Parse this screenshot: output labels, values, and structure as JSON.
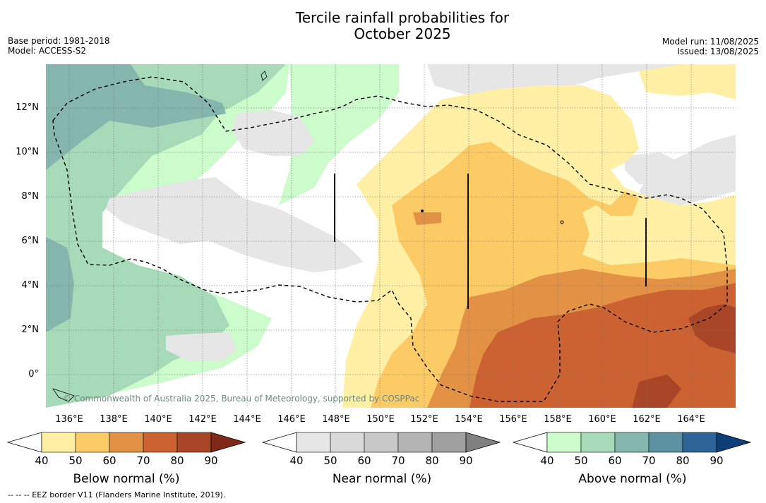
{
  "title_line1": "Tercile rainfall probabilities for",
  "title_line2": "October 2025",
  "base_period": "Base period: 1981-2018",
  "model": "Model: ACCESS-S2",
  "model_run": "Model run: 11/08/2025",
  "issued": "Issued: 13/08/2025",
  "copyright": "© Commonwealth of Australia 2025, Bureau of Meteorology, supported by COSPPac",
  "footer": "--  --  -- EEZ border V11 (Flanders Marine Institute, 2019).",
  "lat_labels": [
    "12°N",
    "10°N",
    "8°N",
    "6°N",
    "4°N",
    "2°N",
    "0°"
  ],
  "lon_labels": [
    "136°E",
    "138°E",
    "140°E",
    "142°E",
    "144°E",
    "146°E",
    "148°E",
    "150°E",
    "152°E",
    "154°E",
    "156°E",
    "158°E",
    "160°E",
    "162°E",
    "164°E"
  ],
  "colorbars": [
    {
      "title": "Below normal (%)",
      "ticks": [
        "40",
        "50",
        "60",
        "70",
        "80",
        "90"
      ],
      "colors": [
        "#fff0a6",
        "#fdcb66",
        "#e29145",
        "#cc6231",
        "#a94628",
        "#7f2a18"
      ]
    },
    {
      "title": "Near normal (%)",
      "ticks": [
        "40",
        "50",
        "60",
        "70",
        "80",
        "90"
      ],
      "colors": [
        "#e6e6e6",
        "#d9d9d9",
        "#c8c8c8",
        "#b4b4b4",
        "#a0a0a0",
        "#808080"
      ]
    },
    {
      "title": "Above normal (%)",
      "ticks": [
        "40",
        "50",
        "60",
        "70",
        "80",
        "90"
      ],
      "colors": [
        "#ccfccc",
        "#a6dab8",
        "#84b6ae",
        "#5d92a2",
        "#2f6499",
        "#0f3d78"
      ]
    }
  ]
}
